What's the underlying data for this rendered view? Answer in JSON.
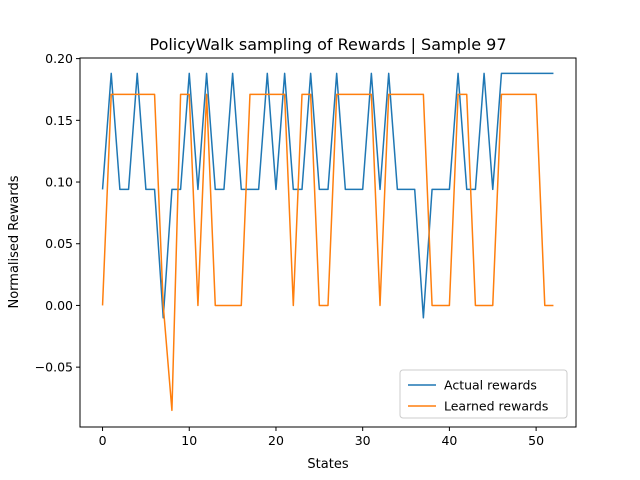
{
  "chart_data": {
    "type": "line",
    "title": "PolicyWalk sampling of Rewards | Sample 97",
    "xlabel": "States",
    "ylabel": "Normalised Rewards",
    "xlim": [
      -2.6,
      54.6
    ],
    "ylim": [
      -0.0985,
      0.2005
    ],
    "xticks": [
      0,
      10,
      20,
      30,
      40,
      50
    ],
    "xtick_labels": [
      "0",
      "10",
      "20",
      "30",
      "40",
      "50"
    ],
    "yticks": [
      -0.05,
      0.0,
      0.05,
      0.1,
      0.15,
      0.2
    ],
    "ytick_labels": [
      "−0.05",
      "0.00",
      "0.05",
      "0.10",
      "0.15",
      "0.20"
    ],
    "grid": false,
    "legend_position": "lower-right",
    "series": [
      {
        "name": "Actual rewards",
        "color": "#1f77b4",
        "x": [
          0,
          1,
          2,
          3,
          4,
          5,
          6,
          7,
          8,
          9,
          10,
          11,
          12,
          13,
          14,
          15,
          16,
          17,
          18,
          19,
          20,
          21,
          22,
          23,
          24,
          25,
          26,
          27,
          28,
          29,
          30,
          31,
          32,
          33,
          34,
          35,
          36,
          37,
          38,
          39,
          40,
          41,
          42,
          43,
          44,
          45,
          46,
          47,
          48,
          49,
          50,
          51,
          52
        ],
        "values": [
          0.094,
          0.188,
          0.094,
          0.094,
          0.188,
          0.094,
          0.094,
          -0.01,
          0.094,
          0.094,
          0.188,
          0.094,
          0.188,
          0.094,
          0.094,
          0.188,
          0.094,
          0.094,
          0.094,
          0.188,
          0.094,
          0.188,
          0.094,
          0.094,
          0.188,
          0.094,
          0.094,
          0.188,
          0.094,
          0.094,
          0.094,
          0.188,
          0.094,
          0.188,
          0.094,
          0.094,
          0.094,
          -0.01,
          0.094,
          0.094,
          0.094,
          0.188,
          0.094,
          0.094,
          0.188,
          0.094,
          0.188,
          0.188,
          0.188,
          0.188,
          0.188,
          0.188,
          0.188
        ]
      },
      {
        "name": "Learned rewards",
        "color": "#ff7f0e",
        "x": [
          0,
          1,
          2,
          3,
          4,
          5,
          6,
          7,
          8,
          9,
          10,
          11,
          12,
          13,
          14,
          15,
          16,
          17,
          18,
          19,
          20,
          21,
          22,
          23,
          24,
          25,
          26,
          27,
          28,
          29,
          30,
          31,
          32,
          33,
          34,
          35,
          36,
          37,
          38,
          39,
          40,
          41,
          42,
          43,
          44,
          45,
          46,
          47,
          48,
          49,
          50,
          51,
          52
        ],
        "values": [
          0.0,
          0.171,
          0.171,
          0.171,
          0.171,
          0.171,
          0.171,
          0.0,
          -0.085,
          0.171,
          0.171,
          0.0,
          0.171,
          0.0,
          0.0,
          0.0,
          0.0,
          0.171,
          0.171,
          0.171,
          0.171,
          0.171,
          0.0,
          0.171,
          0.171,
          0.0,
          0.0,
          0.171,
          0.171,
          0.171,
          0.171,
          0.171,
          0.0,
          0.171,
          0.171,
          0.171,
          0.171,
          0.171,
          0.0,
          0.0,
          0.0,
          0.171,
          0.171,
          0.0,
          0.0,
          0.0,
          0.171,
          0.171,
          0.171,
          0.171,
          0.171,
          0.0,
          0.0
        ]
      }
    ]
  }
}
